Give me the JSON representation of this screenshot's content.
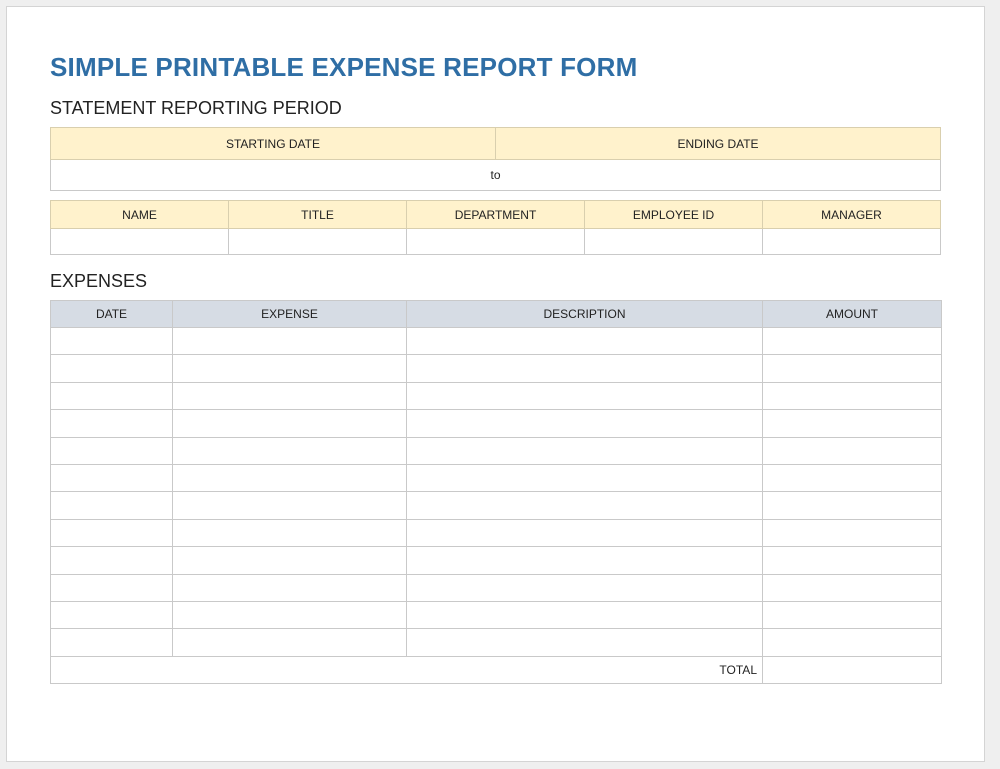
{
  "title": "SIMPLE PRINTABLE EXPENSE REPORT FORM",
  "period": {
    "heading": "STATEMENT REPORTING PERIOD",
    "starting_label": "STARTING DATE",
    "ending_label": "ENDING DATE",
    "separator": "to"
  },
  "employee": {
    "columns": [
      "NAME",
      "TITLE",
      "DEPARTMENT",
      "EMPLOYEE ID",
      "MANAGER"
    ]
  },
  "expenses": {
    "heading": "EXPENSES",
    "columns": [
      "DATE",
      "EXPENSE",
      "DESCRIPTION",
      "AMOUNT"
    ],
    "rows": [
      [
        "",
        "",
        "",
        ""
      ],
      [
        "",
        "",
        "",
        ""
      ],
      [
        "",
        "",
        "",
        ""
      ],
      [
        "",
        "",
        "",
        ""
      ],
      [
        "",
        "",
        "",
        ""
      ],
      [
        "",
        "",
        "",
        ""
      ],
      [
        "",
        "",
        "",
        ""
      ],
      [
        "",
        "",
        "",
        ""
      ],
      [
        "",
        "",
        "",
        ""
      ],
      [
        "",
        "",
        "",
        ""
      ],
      [
        "",
        "",
        "",
        ""
      ],
      [
        "",
        "",
        "",
        ""
      ]
    ],
    "total_label": "TOTAL",
    "total_value": ""
  },
  "colors": {
    "title": "#2f6ea5",
    "header_yellow": "#fff2cc",
    "header_blue": "#d6dce4"
  }
}
